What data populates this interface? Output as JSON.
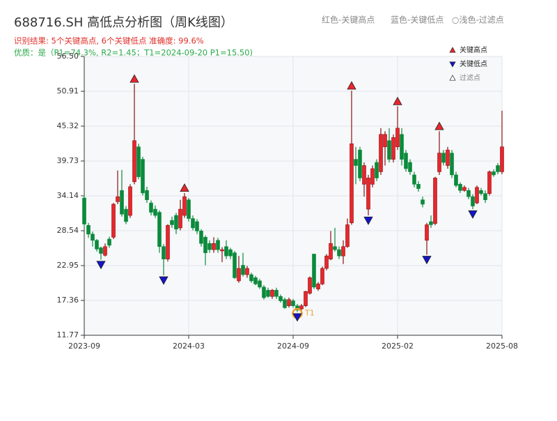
{
  "chart_data": {
    "type": "candlestick",
    "title": "688716.SH 高低点分析图（周K线图）",
    "subtitle": "识别结果: 5个关键高点, 6个关键低点  准确度: 99.6%",
    "quality_note": "优质：是（P1=74.3%, R2=1.45；T1=2024-09-20 P1=15.50)",
    "top_legend": [
      "红色-关键高点",
      "蓝色-关键低点",
      "○浅色-过滤点"
    ],
    "up_color": "#e8262d",
    "down_color": "#0b8a3b",
    "grid": true,
    "xlim": [
      0,
      100
    ],
    "xticks": [
      {
        "value": 0,
        "label": "2023-09"
      },
      {
        "value": 25,
        "label": "2024-03"
      },
      {
        "value": 50,
        "label": "2024-09"
      },
      {
        "value": 75,
        "label": "2025-02"
      },
      {
        "value": 100,
        "label": "2025-08"
      }
    ],
    "ylim": [
      11.77,
      56.5
    ],
    "yticks": [
      11.77,
      17.36,
      22.95,
      28.54,
      34.14,
      39.73,
      45.32,
      50.91,
      {
        "value": 56.5,
        "label": "56.50"
      }
    ],
    "open": [
      33.8,
      29.4,
      28.0,
      27.0,
      25.8,
      24.6,
      27.2,
      27.5,
      33.2,
      35.0,
      32.0,
      31.0,
      36.4,
      42.0,
      40.0,
      35.0,
      33.0,
      32.0,
      31.5,
      26.0,
      24.0,
      30.2,
      31.0,
      29.0,
      31.0,
      33.5,
      30.5,
      30.0,
      28.5,
      27.5,
      26.5,
      25.5,
      27.0,
      25.3,
      26.0,
      25.5,
      25.0,
      20.5,
      23.0,
      21.5,
      21.5,
      21.0,
      20.5,
      19.5,
      19.0,
      18.0,
      19.0,
      18.0,
      17.5,
      16.5,
      17.3,
      16.5,
      16.0,
      16.5,
      18.5,
      24.8,
      19.2,
      20.0,
      22.5,
      24.0,
      26.0,
      25.5,
      24.5,
      26.0,
      29.8,
      40.0,
      41.5,
      36.0,
      32.0,
      36.0,
      39.5,
      38.0,
      42.0,
      43.0,
      40.0,
      42.0,
      44.0,
      41.0,
      39.5,
      37.5,
      36.0,
      33.5,
      27.0,
      30.0,
      29.7,
      38.0,
      41.0,
      39.0,
      41.0,
      37.5,
      36.0,
      35.0,
      35.0,
      34.0,
      33.0,
      35.0,
      34.5,
      34.5,
      38.0,
      39.0,
      38.0
    ],
    "high": [
      34.3,
      29.8,
      28.4,
      27.2,
      26.0,
      26.5,
      27.6,
      33.0,
      38.2,
      38.3,
      32.5,
      36.0,
      52.1,
      42.5,
      40.4,
      35.6,
      33.4,
      32.6,
      31.8,
      26.4,
      29.6,
      30.8,
      31.4,
      33.5,
      34.6,
      33.8,
      31.0,
      30.4,
      28.8,
      27.8,
      27.0,
      27.5,
      27.4,
      25.9,
      27.0,
      25.8,
      25.3,
      24.5,
      25.0,
      22.9,
      21.8,
      21.3,
      20.8,
      19.8,
      19.4,
      19.2,
      19.4,
      18.3,
      17.8,
      17.8,
      17.6,
      16.8,
      16.8,
      18.9,
      21.2,
      24.8,
      20.3,
      22.8,
      24.8,
      28.5,
      29.0,
      26.0,
      27.0,
      30.5,
      51.0,
      42.0,
      42.0,
      39.5,
      37.5,
      39.0,
      40.0,
      45.0,
      44.5,
      45.0,
      44.0,
      48.5,
      45.0,
      41.5,
      40.0,
      38.0,
      36.5,
      34.0,
      29.8,
      31.0,
      37.2,
      44.5,
      41.5,
      42.0,
      41.5,
      38.0,
      36.3,
      35.8,
      35.4,
      34.4,
      35.8,
      35.4,
      35.0,
      38.2,
      38.4,
      39.4,
      47.8
    ],
    "low": [
      29.0,
      27.4,
      26.0,
      25.2,
      23.9,
      24.4,
      25.8,
      27.2,
      32.8,
      30.8,
      29.6,
      30.6,
      36.0,
      36.8,
      34.2,
      33.0,
      31.0,
      30.6,
      25.0,
      21.4,
      23.6,
      29.0,
      28.0,
      28.6,
      30.6,
      30.0,
      28.6,
      28.0,
      26.0,
      23.0,
      25.0,
      25.0,
      25.0,
      23.5,
      24.0,
      24.0,
      20.8,
      20.2,
      21.2,
      21.0,
      20.2,
      19.8,
      19.2,
      17.5,
      17.8,
      17.6,
      17.6,
      17.0,
      16.0,
      16.2,
      16.2,
      15.5,
      15.8,
      16.3,
      18.3,
      19.2,
      18.9,
      19.8,
      22.2,
      23.8,
      25.2,
      24.0,
      23.2,
      25.8,
      29.5,
      36.0,
      36.5,
      34.0,
      31.0,
      35.5,
      36.5,
      37.5,
      39.0,
      39.5,
      39.5,
      41.5,
      39.0,
      38.0,
      37.5,
      35.5,
      34.8,
      32.3,
      24.7,
      29.0,
      29.4,
      37.5,
      39.0,
      38.5,
      37.0,
      35.5,
      34.6,
      34.8,
      33.6,
      32.0,
      32.8,
      34.2,
      33.0,
      34.2,
      37.2,
      37.6,
      37.6
    ],
    "close": [
      29.6,
      28.0,
      27.0,
      25.6,
      24.9,
      26.0,
      26.2,
      32.8,
      34.0,
      31.2,
      30.0,
      35.6,
      43.0,
      37.2,
      34.6,
      33.5,
      31.5,
      31.0,
      26.0,
      24.0,
      29.4,
      29.5,
      28.8,
      32.0,
      34.0,
      30.5,
      29.0,
      28.5,
      26.5,
      25.0,
      25.5,
      26.5,
      25.5,
      25.5,
      24.5,
      24.5,
      21.0,
      22.5,
      21.5,
      22.5,
      20.5,
      20.0,
      19.5,
      17.8,
      18.0,
      19.0,
      18.0,
      17.3,
      16.2,
      17.5,
      16.5,
      15.8,
      16.5,
      18.8,
      21.0,
      19.5,
      20.0,
      22.5,
      24.5,
      26.5,
      25.5,
      24.5,
      26.0,
      29.5,
      42.5,
      39.0,
      37.0,
      39.0,
      37.0,
      38.5,
      37.0,
      44.0,
      44.0,
      40.0,
      43.5,
      45.0,
      40.0,
      38.5,
      38.0,
      36.0,
      35.3,
      32.8,
      29.5,
      29.5,
      37.0,
      41.0,
      39.5,
      41.5,
      37.5,
      35.8,
      35.0,
      35.5,
      34.0,
      32.5,
      35.5,
      34.5,
      33.5,
      38.0,
      37.5,
      38.0,
      42.0
    ],
    "markers": [
      {
        "name": "关键高点",
        "color": "#e8262d",
        "shape": "up",
        "x": [
          12,
          24,
          64,
          75,
          85
        ],
        "values": [
          52.1,
          34.6,
          51.0,
          48.5,
          44.5
        ]
      },
      {
        "name": "关键低点",
        "color": "#1414c8",
        "shape": "down",
        "x": [
          4,
          19,
          51,
          68,
          82,
          93
        ],
        "values": [
          23.9,
          21.4,
          15.5,
          31.0,
          24.7,
          32.0
        ]
      },
      {
        "name": "过滤点",
        "color": "#ffffff",
        "shape": "up",
        "x": [],
        "values": []
      }
    ],
    "annotation": {
      "text": "T1",
      "x": 51,
      "y": 15.5,
      "color": "#f0a030"
    }
  }
}
